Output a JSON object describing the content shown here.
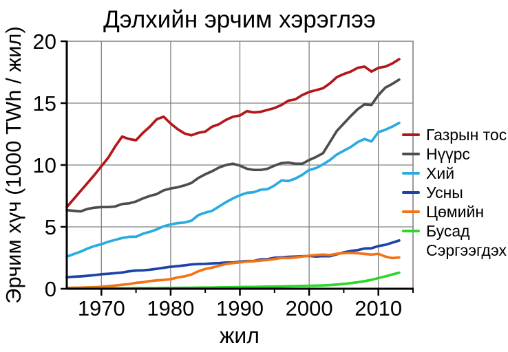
{
  "chart_data": {
    "type": "line",
    "title": "Дэлхийн эрчим хэрэглээ",
    "xlabel": "жил",
    "ylabel": "Эрчим хүч (1000 TWh / жил)",
    "x_range": [
      1965,
      2015
    ],
    "y_range": [
      0,
      20
    ],
    "x_ticks_major": [
      1970,
      1980,
      1990,
      2000,
      2010
    ],
    "x_ticks_minor": [
      1975,
      1985,
      1995,
      2005,
      2015
    ],
    "y_ticks": [
      0,
      5,
      10,
      15,
      20
    ],
    "grid": true,
    "legend_position": "right",
    "colors": {
      "grid": "#808080",
      "axis": "#000000",
      "text": "#000000",
      "background": "#ffffff"
    },
    "years": [
      1965,
      1966,
      1967,
      1968,
      1969,
      1970,
      1971,
      1972,
      1973,
      1974,
      1975,
      1976,
      1977,
      1978,
      1979,
      1980,
      1981,
      1982,
      1983,
      1984,
      1985,
      1986,
      1987,
      1988,
      1989,
      1990,
      1991,
      1992,
      1993,
      1994,
      1995,
      1996,
      1997,
      1998,
      1999,
      2000,
      2001,
      2002,
      2003,
      2004,
      2005,
      2006,
      2007,
      2008,
      2009,
      2010,
      2011,
      2012,
      2013
    ],
    "series": [
      {
        "key": "oil",
        "label": "Газрын тос",
        "color": "#b2181b",
        "values": [
          6.6,
          7.25,
          7.9,
          8.55,
          9.2,
          9.9,
          10.6,
          11.5,
          12.3,
          12.1,
          12.0,
          12.6,
          13.1,
          13.7,
          13.9,
          13.35,
          12.9,
          12.55,
          12.4,
          12.6,
          12.7,
          13.1,
          13.3,
          13.65,
          13.9,
          14.0,
          14.35,
          14.25,
          14.3,
          14.45,
          14.6,
          14.85,
          15.2,
          15.3,
          15.65,
          15.9,
          16.05,
          16.2,
          16.6,
          17.1,
          17.35,
          17.55,
          17.85,
          17.95,
          17.55,
          17.85,
          17.95,
          18.2,
          18.55
        ]
      },
      {
        "key": "coal",
        "label": "Нүүрс",
        "color": "#4d4d4d",
        "values": [
          6.35,
          6.3,
          6.25,
          6.45,
          6.55,
          6.6,
          6.6,
          6.65,
          6.85,
          6.9,
          7.05,
          7.3,
          7.5,
          7.65,
          7.95,
          8.1,
          8.2,
          8.35,
          8.55,
          8.95,
          9.25,
          9.5,
          9.8,
          10.0,
          10.1,
          9.95,
          9.7,
          9.6,
          9.6,
          9.7,
          9.95,
          10.15,
          10.2,
          10.1,
          10.1,
          10.4,
          10.65,
          10.95,
          11.85,
          12.75,
          13.35,
          13.95,
          14.5,
          14.9,
          14.85,
          15.65,
          16.25,
          16.55,
          16.9
        ]
      },
      {
        "key": "gas",
        "label": "Хий",
        "color": "#29abe2",
        "values": [
          2.6,
          2.8,
          3.0,
          3.25,
          3.45,
          3.6,
          3.8,
          3.95,
          4.1,
          4.2,
          4.2,
          4.45,
          4.6,
          4.8,
          5.05,
          5.2,
          5.3,
          5.35,
          5.5,
          5.95,
          6.15,
          6.3,
          6.65,
          7.0,
          7.3,
          7.55,
          7.75,
          7.8,
          8.0,
          8.05,
          8.35,
          8.75,
          8.7,
          8.9,
          9.2,
          9.6,
          9.75,
          10.05,
          10.4,
          10.85,
          11.15,
          11.45,
          11.85,
          12.1,
          11.9,
          12.65,
          12.85,
          13.1,
          13.4
        ]
      },
      {
        "key": "hydro",
        "label": "Усны",
        "color": "#1c44a8",
        "values": [
          0.93,
          0.97,
          1.0,
          1.05,
          1.1,
          1.17,
          1.21,
          1.26,
          1.31,
          1.41,
          1.47,
          1.49,
          1.54,
          1.61,
          1.7,
          1.77,
          1.83,
          1.89,
          1.96,
          2.0,
          2.01,
          2.05,
          2.07,
          2.12,
          2.12,
          2.19,
          2.24,
          2.24,
          2.37,
          2.39,
          2.5,
          2.54,
          2.58,
          2.6,
          2.63,
          2.65,
          2.6,
          2.64,
          2.63,
          2.79,
          2.94,
          3.05,
          3.12,
          3.25,
          3.27,
          3.45,
          3.55,
          3.72,
          3.9
        ]
      },
      {
        "key": "nuclear",
        "label": "Цөмийн",
        "color": "#f47216",
        "values": [
          0.07,
          0.08,
          0.09,
          0.11,
          0.13,
          0.16,
          0.21,
          0.26,
          0.32,
          0.38,
          0.48,
          0.53,
          0.62,
          0.67,
          0.71,
          0.77,
          0.91,
          1.0,
          1.15,
          1.41,
          1.6,
          1.71,
          1.86,
          2.0,
          2.08,
          2.13,
          2.2,
          2.22,
          2.28,
          2.33,
          2.4,
          2.49,
          2.48,
          2.53,
          2.6,
          2.67,
          2.73,
          2.76,
          2.72,
          2.83,
          2.88,
          2.9,
          2.87,
          2.81,
          2.76,
          2.82,
          2.6,
          2.48,
          2.53
        ]
      },
      {
        "key": "other-renewables",
        "label": "Бусад\nСэргээгдэх",
        "color": "#2ed52a",
        "values": [
          0.02,
          0.02,
          0.02,
          0.03,
          0.03,
          0.03,
          0.03,
          0.04,
          0.04,
          0.04,
          0.05,
          0.05,
          0.05,
          0.05,
          0.06,
          0.06,
          0.07,
          0.08,
          0.08,
          0.09,
          0.1,
          0.1,
          0.11,
          0.12,
          0.13,
          0.14,
          0.15,
          0.15,
          0.16,
          0.17,
          0.18,
          0.19,
          0.2,
          0.21,
          0.22,
          0.24,
          0.25,
          0.27,
          0.3,
          0.34,
          0.39,
          0.45,
          0.52,
          0.61,
          0.72,
          0.86,
          1.0,
          1.15,
          1.3
        ]
      }
    ]
  }
}
